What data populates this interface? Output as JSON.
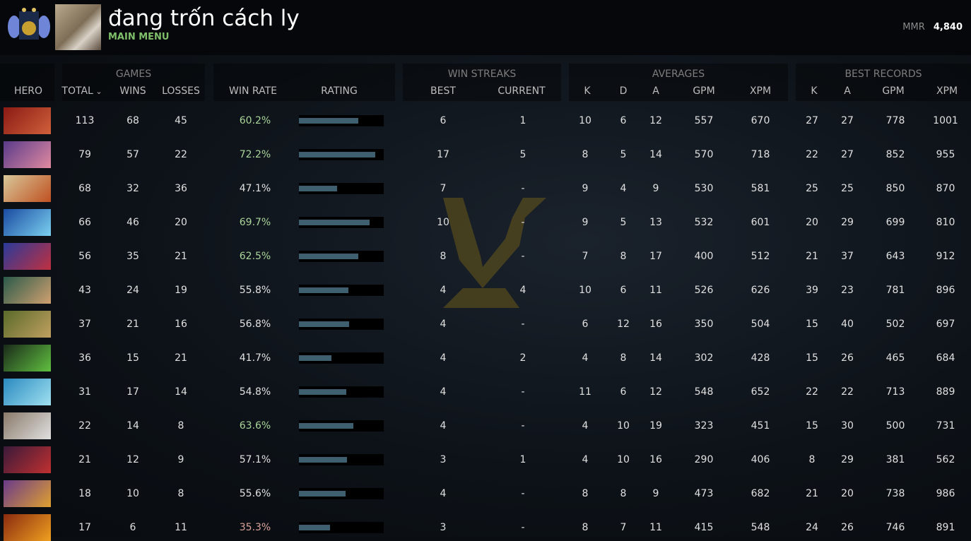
{
  "profile": {
    "name": "đang trốn cách ly",
    "subtitle": "MAIN MENU",
    "mmr_label": "MMR",
    "mmr_value": "4,840"
  },
  "groups": {
    "games": "GAMES",
    "win_streaks": "WIN STREAKS",
    "averages": "AVERAGES",
    "best_records": "BEST RECORDS"
  },
  "columns": {
    "hero": "HERO",
    "total": "TOTAL",
    "wins": "WINS",
    "losses": "LOSSES",
    "win_rate": "WIN RATE",
    "rating": "RATING",
    "best": "BEST",
    "current": "CURRENT",
    "k": "K",
    "d": "D",
    "a": "A",
    "gpm": "GPM",
    "xpm": "XPM",
    "best_k": "K",
    "best_a": "A",
    "best_gpm": "GPM",
    "best_xpm": "XPM"
  },
  "sort": {
    "column": "total",
    "direction": "descending",
    "icon": "chevron-down-icon"
  },
  "colors": {
    "win_rate_high": "#a9d49a",
    "win_rate_normal": "#e0e0e0",
    "win_rate_low": "#d9a39a",
    "rating_bar": "#3d5f70",
    "menu_green": "#7fbf6a"
  },
  "rows": [
    {
      "hero_colors": [
        "#8a1a14",
        "#d0603a"
      ],
      "total": "113",
      "wins": "68",
      "losses": "45",
      "win_rate": "60.2%",
      "rating": 0.7,
      "best": "6",
      "current": "1",
      "k": "10",
      "d": "6",
      "a": "12",
      "gpm": "557",
      "xpm": "670",
      "bk": "27",
      "ba": "27",
      "bgpm": "778",
      "bxpm": "1001"
    },
    {
      "hero_colors": [
        "#5a3a8a",
        "#e08aa0"
      ],
      "total": "79",
      "wins": "57",
      "losses": "22",
      "win_rate": "72.2%",
      "rating": 0.9,
      "best": "17",
      "current": "5",
      "k": "8",
      "d": "5",
      "a": "14",
      "gpm": "570",
      "xpm": "718",
      "bk": "22",
      "ba": "27",
      "bgpm": "852",
      "bxpm": "955"
    },
    {
      "hero_colors": [
        "#d8c89a",
        "#c05020"
      ],
      "total": "68",
      "wins": "32",
      "losses": "36",
      "win_rate": "47.1%",
      "rating": 0.45,
      "best": "7",
      "current": "-",
      "k": "9",
      "d": "4",
      "a": "9",
      "gpm": "530",
      "xpm": "581",
      "bk": "25",
      "ba": "25",
      "bgpm": "850",
      "bxpm": "870"
    },
    {
      "hero_colors": [
        "#1a4aa0",
        "#7ad0f0"
      ],
      "total": "66",
      "wins": "46",
      "losses": "20",
      "win_rate": "69.7%",
      "rating": 0.83,
      "best": "10",
      "current": "-",
      "k": "9",
      "d": "5",
      "a": "13",
      "gpm": "532",
      "xpm": "601",
      "bk": "20",
      "ba": "29",
      "bgpm": "699",
      "bxpm": "810"
    },
    {
      "hero_colors": [
        "#2a3a9a",
        "#c03040"
      ],
      "total": "56",
      "wins": "35",
      "losses": "21",
      "win_rate": "62.5%",
      "rating": 0.7,
      "best": "8",
      "current": "-",
      "k": "7",
      "d": "8",
      "a": "17",
      "gpm": "400",
      "xpm": "512",
      "bk": "21",
      "ba": "37",
      "bgpm": "643",
      "bxpm": "912"
    },
    {
      "hero_colors": [
        "#2a5a4a",
        "#d0a070"
      ],
      "total": "43",
      "wins": "24",
      "losses": "19",
      "win_rate": "55.8%",
      "rating": 0.58,
      "best": "4",
      "current": "4",
      "k": "10",
      "d": "6",
      "a": "11",
      "gpm": "526",
      "xpm": "626",
      "bk": "39",
      "ba": "23",
      "bgpm": "781",
      "bxpm": "896"
    },
    {
      "hero_colors": [
        "#5a6a2a",
        "#c0a060"
      ],
      "total": "37",
      "wins": "21",
      "losses": "16",
      "win_rate": "56.8%",
      "rating": 0.59,
      "best": "4",
      "current": "-",
      "k": "6",
      "d": "12",
      "a": "16",
      "gpm": "350",
      "xpm": "504",
      "bk": "15",
      "ba": "40",
      "bgpm": "502",
      "bxpm": "697"
    },
    {
      "hero_colors": [
        "#1a2a1a",
        "#60c040"
      ],
      "total": "36",
      "wins": "15",
      "losses": "21",
      "win_rate": "41.7%",
      "rating": 0.38,
      "best": "4",
      "current": "2",
      "k": "4",
      "d": "8",
      "a": "14",
      "gpm": "302",
      "xpm": "428",
      "bk": "15",
      "ba": "26",
      "bgpm": "465",
      "bxpm": "684"
    },
    {
      "hero_colors": [
        "#2a8ac0",
        "#a0e0f0"
      ],
      "total": "31",
      "wins": "17",
      "losses": "14",
      "win_rate": "54.8%",
      "rating": 0.56,
      "best": "4",
      "current": "-",
      "k": "11",
      "d": "6",
      "a": "12",
      "gpm": "548",
      "xpm": "652",
      "bk": "22",
      "ba": "22",
      "bgpm": "713",
      "bxpm": "889"
    },
    {
      "hero_colors": [
        "#8a7a6a",
        "#e0e0e0"
      ],
      "total": "22",
      "wins": "14",
      "losses": "8",
      "win_rate": "63.6%",
      "rating": 0.64,
      "best": "4",
      "current": "-",
      "k": "4",
      "d": "10",
      "a": "19",
      "gpm": "323",
      "xpm": "451",
      "bk": "15",
      "ba": "30",
      "bgpm": "500",
      "bxpm": "731"
    },
    {
      "hero_colors": [
        "#3a1a3a",
        "#c03030"
      ],
      "total": "21",
      "wins": "12",
      "losses": "9",
      "win_rate": "57.1%",
      "rating": 0.57,
      "best": "3",
      "current": "1",
      "k": "4",
      "d": "10",
      "a": "16",
      "gpm": "290",
      "xpm": "406",
      "bk": "8",
      "ba": "29",
      "bgpm": "381",
      "bxpm": "562"
    },
    {
      "hero_colors": [
        "#6a3a8a",
        "#e0a030"
      ],
      "total": "18",
      "wins": "10",
      "losses": "8",
      "win_rate": "55.6%",
      "rating": 0.55,
      "best": "4",
      "current": "-",
      "k": "8",
      "d": "8",
      "a": "9",
      "gpm": "473",
      "xpm": "682",
      "bk": "21",
      "ba": "20",
      "bgpm": "738",
      "bxpm": "986"
    },
    {
      "hero_colors": [
        "#8a2a10",
        "#f0a020"
      ],
      "total": "17",
      "wins": "6",
      "losses": "11",
      "win_rate": "35.3%",
      "rating": 0.37,
      "best": "3",
      "current": "-",
      "k": "8",
      "d": "7",
      "a": "11",
      "gpm": "415",
      "xpm": "548",
      "bk": "24",
      "ba": "26",
      "bgpm": "746",
      "bxpm": "891"
    }
  ]
}
